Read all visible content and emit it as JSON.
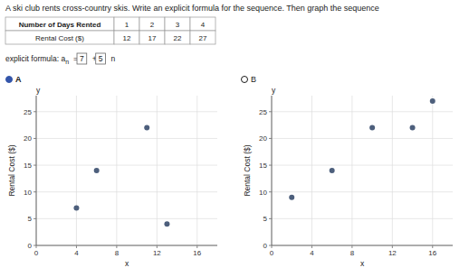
{
  "title": "A ski club rents cross-country skis. Write an explicit formula for the sequence. Then graph the sequence",
  "table": {
    "headers": [
      "Number of Days Rented",
      "1",
      "2",
      "3",
      "4"
    ],
    "rows": [
      [
        "Rental Cost ($)",
        "12",
        "17",
        "22",
        "27"
      ]
    ]
  },
  "annotations": [
    "explicit formula:  a",
    "n",
    "=",
    "7",
    "+",
    "5",
    "n"
  ],
  "chart_data": [
    {
      "type": "scatter",
      "title": "A",
      "xlabel": "x",
      "ylabel": "Rental Cost ($)",
      "annotations": [
        "y"
      ],
      "x": [
        4,
        6,
        11,
        13
      ],
      "values": [
        7,
        14,
        22,
        4
      ],
      "color": "#4d5f7c",
      "xlim": [
        0,
        18
      ],
      "ylim": [
        0,
        28
      ],
      "xticks": [
        0,
        4,
        8,
        12,
        16
      ],
      "yticks": [
        0,
        5,
        10,
        15,
        20,
        25
      ],
      "grid": true
    },
    {
      "type": "scatter",
      "title": "B",
      "xlabel": "x",
      "ylabel": "Rental Cost ($)",
      "annotations": [
        "y"
      ],
      "x": [
        2,
        6,
        10,
        14,
        16
      ],
      "values": [
        9,
        14,
        22,
        22,
        27
      ],
      "color": "#4d5f7c",
      "xlim": [
        0,
        18
      ],
      "ylim": [
        0,
        28
      ],
      "xticks": [
        0,
        4,
        8,
        12,
        16
      ],
      "yticks": [
        0,
        5,
        10,
        15,
        20,
        25
      ],
      "grid": true
    }
  ]
}
